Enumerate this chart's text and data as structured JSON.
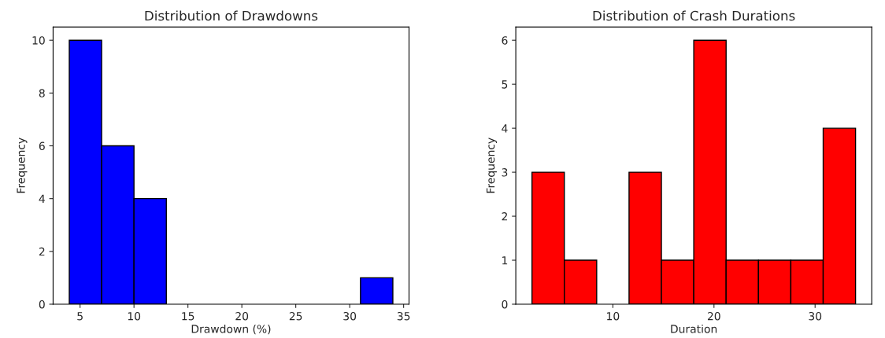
{
  "chart_data": [
    {
      "type": "histogram",
      "title": "Distribution of Drawdowns",
      "xlabel": "Drawdown (%)",
      "ylabel": "Frequency",
      "color": "#0000ff",
      "bins": [
        4,
        7,
        10,
        13,
        16,
        19,
        22,
        25,
        28,
        31,
        34
      ],
      "values": [
        10,
        6,
        4,
        0,
        0,
        0,
        0,
        0,
        0,
        1
      ],
      "xlim": [
        2.5,
        35.5
      ],
      "xticks": [
        5,
        10,
        15,
        20,
        25,
        30,
        35
      ],
      "ylim": [
        0,
        10.5
      ],
      "yticks": [
        0,
        2,
        4,
        6,
        8,
        10
      ],
      "grid": false
    },
    {
      "type": "histogram",
      "title": "Distribution of Crash Durations",
      "xlabel": "Duration",
      "ylabel": "Frequency",
      "color": "#ff0000",
      "bins": [
        2,
        5.2,
        8.4,
        11.6,
        14.8,
        18,
        21.2,
        24.4,
        27.6,
        30.8,
        34
      ],
      "values": [
        3,
        1,
        0,
        3,
        1,
        6,
        1,
        1,
        1,
        4
      ],
      "xlim": [
        0.4,
        35.6
      ],
      "xticks": [
        10,
        20,
        30
      ],
      "ylim": [
        0,
        6.3
      ],
      "yticks": [
        0,
        1,
        2,
        3,
        4,
        5,
        6
      ],
      "grid": false
    }
  ]
}
